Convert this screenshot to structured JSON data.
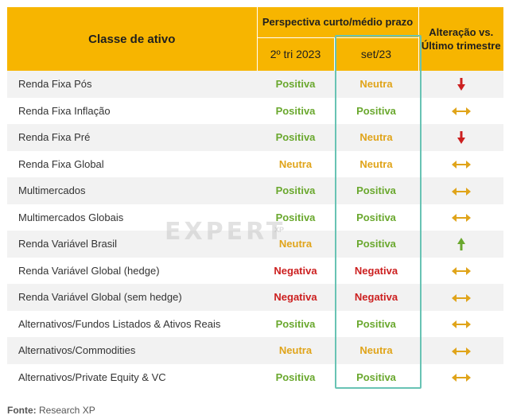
{
  "header": {
    "asset_class": "Classe de ativo",
    "perspective": "Perspectiva curto/médio prazo",
    "period_1": "2º tri 2023",
    "period_2": "set/23",
    "change": "Alteração vs. Último trimestre"
  },
  "colors": {
    "header_bg": "#f7b500",
    "positive": "#6aa82e",
    "neutral": "#e0a41a",
    "negative": "#cc1f1f",
    "highlight": "#68c3b4"
  },
  "rows": [
    {
      "asset": "Renda Fixa Pós",
      "prev": "Positiva",
      "prev_type": "pos",
      "curr": "Neutra",
      "curr_type": "neu",
      "change": "down-arrow-icon"
    },
    {
      "asset": "Renda Fixa Inflação",
      "prev": "Positiva",
      "prev_type": "pos",
      "curr": "Positiva",
      "curr_type": "pos",
      "change": "left-right-arrow-icon"
    },
    {
      "asset": "Renda Fixa Pré",
      "prev": "Positiva",
      "prev_type": "pos",
      "curr": "Neutra",
      "curr_type": "neu",
      "change": "down-arrow-icon"
    },
    {
      "asset": "Renda Fixa Global",
      "prev": "Neutra",
      "prev_type": "neu",
      "curr": "Neutra",
      "curr_type": "neu",
      "change": "left-right-arrow-icon"
    },
    {
      "asset": "Multimercados",
      "prev": "Positiva",
      "prev_type": "pos",
      "curr": "Positiva",
      "curr_type": "pos",
      "change": "left-right-arrow-icon"
    },
    {
      "asset": "Multimercados Globais",
      "prev": "Positiva",
      "prev_type": "pos",
      "curr": "Positiva",
      "curr_type": "pos",
      "change": "left-right-arrow-icon"
    },
    {
      "asset": "Renda Variável Brasil",
      "prev": "Neutra",
      "prev_type": "neu",
      "curr": "Positiva",
      "curr_type": "pos",
      "change": "up-arrow-icon"
    },
    {
      "asset": "Renda Variável Global (hedge)",
      "prev": "Negativa",
      "prev_type": "neg",
      "curr": "Negativa",
      "curr_type": "neg",
      "change": "left-right-arrow-icon"
    },
    {
      "asset": "Renda Variável Global (sem hedge)",
      "prev": "Negativa",
      "prev_type": "neg",
      "curr": "Negativa",
      "curr_type": "neg",
      "change": "left-right-arrow-icon"
    },
    {
      "asset": "Alternativos/Fundos Listados & Ativos Reais",
      "prev": "Positiva",
      "prev_type": "pos",
      "curr": "Positiva",
      "curr_type": "pos",
      "change": "left-right-arrow-icon"
    },
    {
      "asset": "Alternativos/Commodities",
      "prev": "Neutra",
      "prev_type": "neu",
      "curr": "Neutra",
      "curr_type": "neu",
      "change": "left-right-arrow-icon"
    },
    {
      "asset": "Alternativos/Private Equity & VC",
      "prev": "Positiva",
      "prev_type": "pos",
      "curr": "Positiva",
      "curr_type": "pos",
      "change": "left-right-arrow-icon"
    }
  ],
  "watermark": {
    "text": "EXPERT",
    "sub": "XP"
  },
  "footer": {
    "label": "Fonte:",
    "source": "Research XP"
  }
}
